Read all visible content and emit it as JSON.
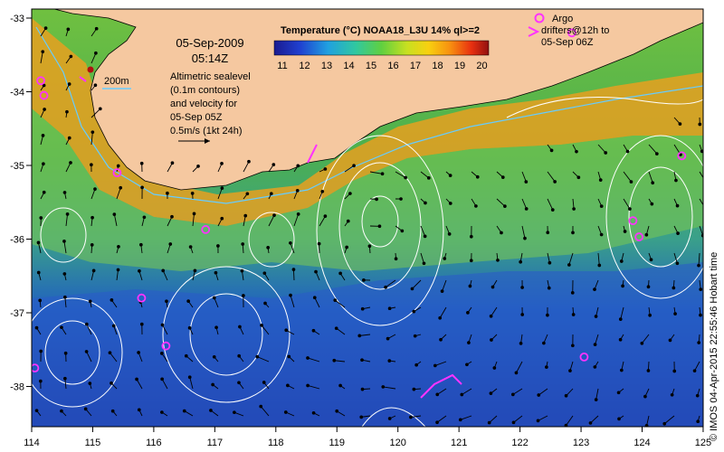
{
  "map": {
    "date": "05-Sep-2009",
    "time": "05:14Z",
    "isobath_label": "200m",
    "sealevel_text": [
      "Altimetric sealevel",
      "(0.1m contours)",
      "and velocity for",
      "05-Sep 05Z"
    ],
    "velocity_scale_text": "0.5m/s (1kt 24h)",
    "colorbar": {
      "title": "Temperature (°C) NOAA18_L3U 14% ql>=2",
      "ticks": [
        "11",
        "12",
        "13",
        "14",
        "15",
        "16",
        "17",
        "18",
        "19",
        "20"
      ]
    },
    "argo_text": [
      "Argo",
      "drifters@12h to",
      "05-Sep 06Z"
    ],
    "side_text": "© IMOS 04-Apr-2015 22:55:46 Hobart time",
    "x_ticks": [
      "114",
      "115",
      "116",
      "117",
      "118",
      "119",
      "120",
      "121",
      "122",
      "123",
      "124",
      "125"
    ],
    "y_ticks": [
      "-33",
      "-34",
      "-35",
      "-36",
      "-37",
      "-38"
    ],
    "colors": {
      "land": "#f5c8a0",
      "argo": "#ff33ff",
      "isobath": "#66ccff",
      "contour": "#ffffff"
    },
    "argo_points": [
      {
        "lon": 114.15,
        "lat": -33.85
      },
      {
        "lon": 114.2,
        "lat": -34.05
      },
      {
        "lon": 115.4,
        "lat": -35.1
      },
      {
        "lon": 116.85,
        "lat": -35.87
      },
      {
        "lon": 115.8,
        "lat": -36.8
      },
      {
        "lon": 116.2,
        "lat": -37.45
      },
      {
        "lon": 114.05,
        "lat": -37.75
      },
      {
        "lon": 123.05,
        "lat": -37.6
      },
      {
        "lon": 123.85,
        "lat": -35.75
      },
      {
        "lon": 123.95,
        "lat": -35.97
      },
      {
        "lon": 124.65,
        "lat": -34.87
      },
      {
        "lon": 122.85,
        "lat": -33.2
      }
    ]
  }
}
